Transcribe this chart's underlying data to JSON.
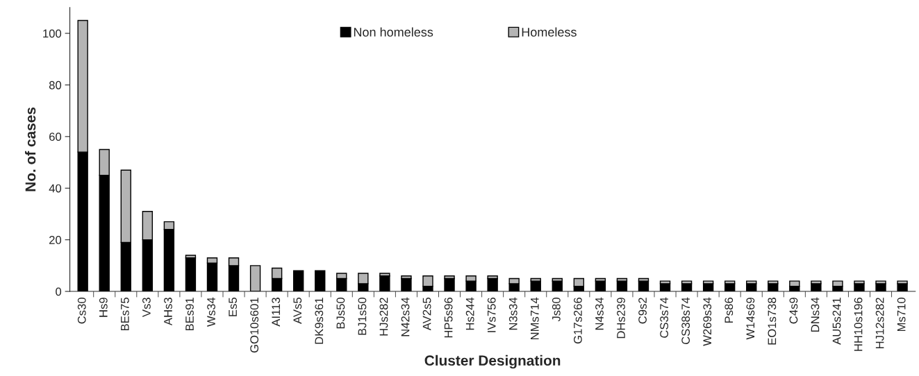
{
  "chart_data": {
    "type": "bar",
    "stacked": true,
    "xlabel": "Cluster Designation",
    "ylabel": "No. of cases",
    "categories": [
      "Cs30",
      "Hs9",
      "BEs75",
      "Vs3",
      "AHs3",
      "BEs91",
      "Ws34",
      "Es5",
      "GO10s601",
      "AI113",
      "AVs5",
      "DK9s361",
      "BJs50",
      "BJ1s50",
      "HJs282",
      "N42s34",
      "AV2s5",
      "HP5s96",
      "Hs244",
      "IVs756",
      "N3s34",
      "NMs714",
      "Js80",
      "G17s266",
      "N4s34",
      "DHs239",
      "C9s2",
      "CS3s74",
      "CS38s74",
      "W269s34",
      "Ps86",
      "W14s69",
      "EO1s738",
      "C4s9",
      "DNs34",
      "AU5s241",
      "HH10s196",
      "HJ12s282",
      "Ms710"
    ],
    "series": [
      {
        "name": "Non homeless",
        "color": "#000000",
        "values": [
          54,
          45,
          19,
          20,
          24,
          13,
          11,
          10,
          0,
          5,
          8,
          8,
          5,
          3,
          6,
          5,
          2,
          5,
          4,
          5,
          3,
          4,
          4,
          2,
          4,
          4,
          4,
          3,
          3,
          3,
          3,
          3,
          3,
          2,
          3,
          2,
          3,
          3,
          3
        ]
      },
      {
        "name": "Homeless",
        "color": "#b4b4b4",
        "values": [
          51,
          10,
          28,
          11,
          3,
          1,
          2,
          3,
          10,
          4,
          0,
          0,
          2,
          4,
          1,
          1,
          4,
          1,
          2,
          1,
          2,
          1,
          1,
          3,
          1,
          1,
          1,
          1,
          1,
          1,
          1,
          1,
          1,
          2,
          1,
          2,
          1,
          1,
          1
        ]
      }
    ],
    "ylim": [
      0,
      110
    ],
    "yticks": [
      0,
      20,
      40,
      60,
      80,
      100
    ],
    "grid": false,
    "legend": "top"
  }
}
